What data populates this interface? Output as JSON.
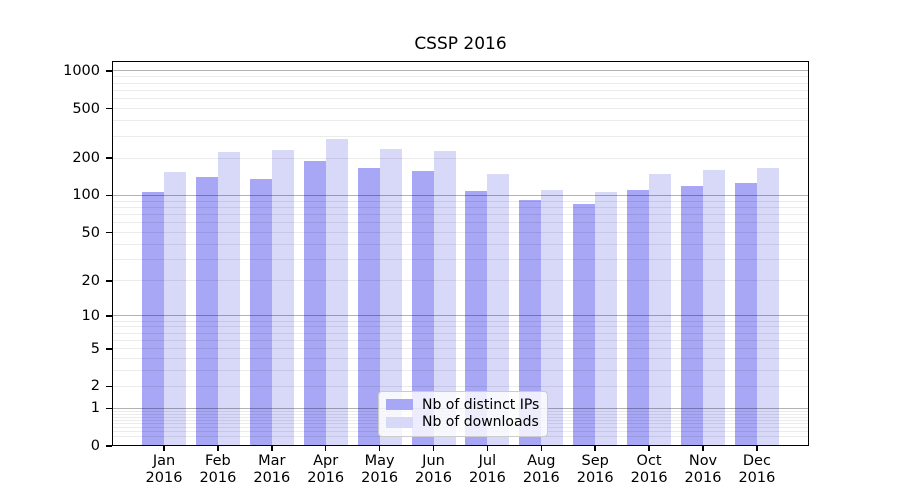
{
  "chart_data": {
    "type": "bar",
    "title": "CSSP 2016",
    "categories": [
      "Jan",
      "Feb",
      "Mar",
      "Apr",
      "May",
      "Jun",
      "Jul",
      "Aug",
      "Sep",
      "Oct",
      "Nov",
      "Dec"
    ],
    "category_year": "2016",
    "series": [
      {
        "name": "Nb of distinct IPs",
        "color": "#a7a7f6",
        "values": [
          107,
          140,
          136,
          190,
          166,
          157,
          108,
          92,
          86,
          110,
          120,
          126
        ]
      },
      {
        "name": "Nb of downloads",
        "color": "#d8d8f9",
        "values": [
          155,
          222,
          232,
          286,
          236,
          230,
          150,
          111,
          107,
          148,
          160,
          167
        ]
      }
    ],
    "yticks": [
      0,
      1,
      2,
      5,
      10,
      20,
      50,
      100,
      200,
      500,
      1000
    ],
    "ylim": [
      0,
      1200
    ],
    "yscale": "symlog",
    "grid": "both-horizontal",
    "legend_position": "lower center",
    "colors": {
      "major_grid": "rgba(0,0,0,0.30)",
      "minor_grid": "rgba(0,0,0,0.08)",
      "spine": "#000000",
      "text": "#000000"
    }
  }
}
